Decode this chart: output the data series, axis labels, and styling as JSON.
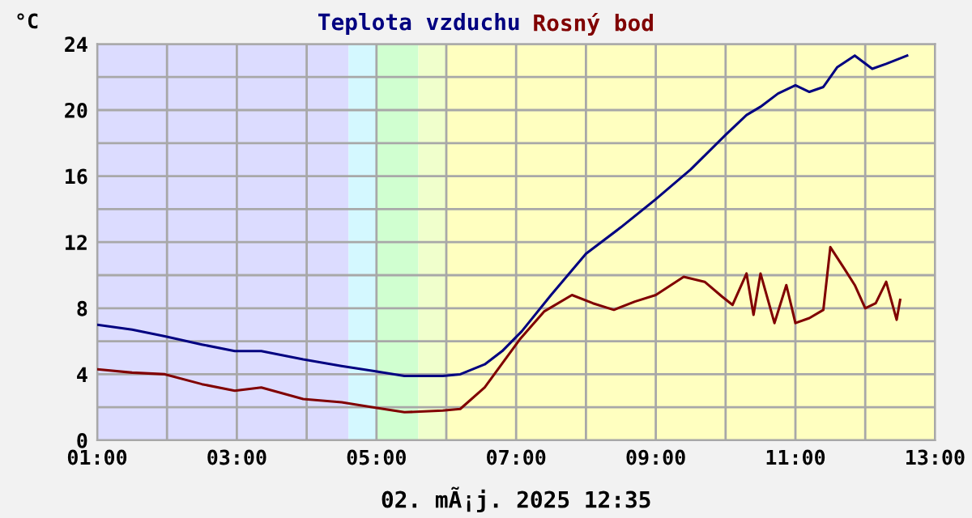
{
  "chart_data": {
    "type": "line",
    "ylabel": "°C",
    "xlabel": "02. mÃ¡j. 2025 12:35",
    "xlim": [
      1,
      13
    ],
    "ylim": [
      0,
      24
    ],
    "xticks": [
      {
        "value": 1,
        "label": "01:00"
      },
      {
        "value": 2,
        "label": null
      },
      {
        "value": 3,
        "label": "03:00"
      },
      {
        "value": 4,
        "label": null
      },
      {
        "value": 5,
        "label": "05:00"
      },
      {
        "value": 6,
        "label": null
      },
      {
        "value": 7,
        "label": "07:00"
      },
      {
        "value": 8,
        "label": null
      },
      {
        "value": 9,
        "label": "09:00"
      },
      {
        "value": 10,
        "label": null
      },
      {
        "value": 11,
        "label": "11:00"
      },
      {
        "value": 12,
        "label": null
      },
      {
        "value": 13,
        "label": "13:00"
      }
    ],
    "yticks": [
      0,
      {
        "value": 2,
        "label": null
      },
      4,
      {
        "value": 6,
        "label": null
      },
      8,
      {
        "value": 10,
        "label": null
      },
      12,
      {
        "value": 14,
        "label": null
      },
      16,
      {
        "value": 18,
        "label": null
      },
      20,
      {
        "value": 22,
        "label": null
      },
      24
    ],
    "grid": true,
    "legend": "top",
    "line_style": "solid",
    "marker": "none",
    "bands": [
      {
        "axis": "x",
        "from": 1,
        "to": 4.6,
        "label": null,
        "color": "#dcdcff"
      },
      {
        "axis": "x",
        "from": 4.6,
        "to": 5.0,
        "label": null,
        "color": "#d4f8ff"
      },
      {
        "axis": "x",
        "from": 5.0,
        "to": 5.6,
        "label": null,
        "color": "#d0ffd0"
      },
      {
        "axis": "x",
        "from": 5.6,
        "to": 6.0,
        "label": null,
        "color": "#f0ffcc"
      },
      {
        "axis": "x",
        "from": 6.0,
        "to": 13,
        "label": null,
        "color": "#ffffc0"
      }
    ],
    "series": [
      {
        "name": "Teplota vzduchu",
        "color": "#000080",
        "x": [
          1.0,
          1.5,
          1.97,
          2.5,
          2.97,
          3.35,
          3.95,
          4.5,
          4.95,
          5.4,
          5.95,
          6.2,
          6.55,
          6.8,
          7.08,
          7.5,
          8.0,
          8.5,
          9.0,
          9.5,
          10.0,
          10.3,
          10.5,
          10.75,
          11.0,
          11.2,
          11.4,
          11.6,
          11.85,
          12.1,
          12.3,
          12.6
        ],
        "values": [
          7.0,
          6.7,
          6.3,
          5.8,
          5.4,
          5.4,
          4.9,
          4.5,
          4.2,
          3.9,
          3.9,
          4.0,
          4.6,
          5.4,
          6.6,
          8.8,
          11.3,
          12.9,
          14.6,
          16.4,
          18.5,
          19.7,
          20.2,
          21.0,
          21.5,
          21.1,
          21.4,
          22.6,
          23.3,
          22.5,
          22.8,
          23.3
        ]
      },
      {
        "name": "Rosný bod",
        "color": "#800000",
        "x": [
          1.0,
          1.5,
          1.97,
          2.5,
          2.97,
          3.35,
          3.95,
          4.5,
          4.95,
          5.4,
          5.95,
          6.2,
          6.55,
          7.05,
          7.4,
          7.8,
          8.1,
          8.4,
          8.7,
          9.0,
          9.4,
          9.7,
          9.95,
          10.1,
          10.3,
          10.4,
          10.5,
          10.7,
          10.87,
          11.0,
          11.2,
          11.4,
          11.5,
          11.7,
          11.85,
          12.0,
          12.15,
          12.3,
          12.45,
          12.5
        ],
        "values": [
          4.3,
          4.1,
          4.0,
          3.4,
          3.0,
          3.2,
          2.5,
          2.3,
          2.0,
          1.7,
          1.8,
          1.9,
          3.2,
          6.1,
          7.8,
          8.8,
          8.3,
          7.9,
          8.4,
          8.8,
          9.9,
          9.6,
          8.7,
          8.2,
          10.1,
          7.6,
          10.1,
          7.1,
          9.4,
          7.1,
          7.4,
          7.9,
          11.7,
          10.4,
          9.4,
          8.0,
          8.3,
          9.6,
          7.3,
          8.5
        ]
      }
    ]
  }
}
